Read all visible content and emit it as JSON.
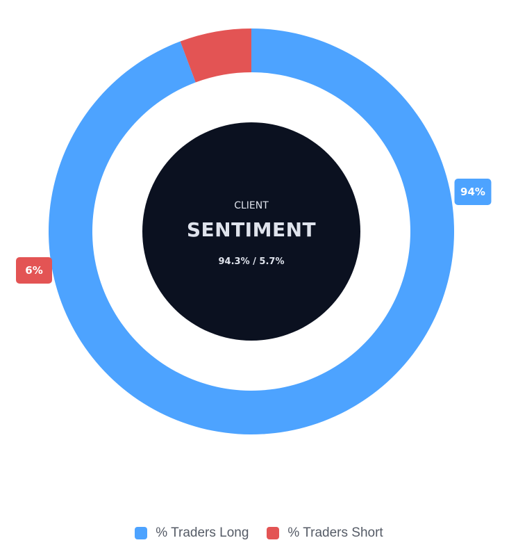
{
  "chart_data": {
    "type": "pie",
    "categories": [
      "% Traders Long",
      "% Traders Short"
    ],
    "values": [
      94.3,
      5.7
    ],
    "slice_labels": [
      "94%",
      "6%"
    ],
    "colors": [
      "#4da3ff",
      "#e35454"
    ],
    "center": {
      "kicker": "CLIENT",
      "title": "SENTIMENT",
      "ratio": "94.3% / 5.7%",
      "background": "#0b1120"
    },
    "legend_position": "bottom"
  }
}
